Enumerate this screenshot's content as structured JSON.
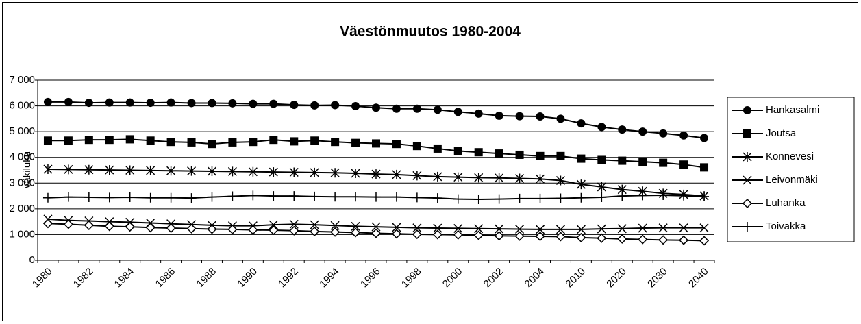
{
  "chart_data": {
    "type": "line",
    "title": "Väestönmuutos 1980-2004",
    "y_label": "väkiluku",
    "categories": [
      "1980",
      null,
      "1982",
      null,
      "1984",
      null,
      "1986",
      null,
      "1988",
      null,
      "1990",
      null,
      "1992",
      null,
      "1994",
      null,
      "1996",
      null,
      "1998",
      null,
      "2000",
      null,
      "2002",
      null,
      "2004",
      null,
      "2010",
      null,
      "2020",
      null,
      "2030",
      null,
      "2040"
    ],
    "ylim": [
      0,
      7000
    ],
    "yticks": [
      0,
      {
        "value": 1000,
        "label": "1 000"
      },
      {
        "value": 2000,
        "label": "2 000"
      },
      {
        "value": 3000,
        "label": "3 000"
      },
      {
        "value": 4000,
        "label": "4 000"
      },
      {
        "value": 5000,
        "label": "5 000"
      },
      {
        "value": 6000,
        "label": "6 000"
      },
      {
        "value": 7000,
        "label": "7 000"
      }
    ],
    "grid": true,
    "legend": "right",
    "series": [
      {
        "name": "Hankasalmi",
        "color": "#000000",
        "marker": "circle",
        "values": [
          6150,
          6150,
          6120,
          6130,
          6130,
          6120,
          6130,
          6110,
          6110,
          6100,
          6080,
          6080,
          6040,
          6020,
          6030,
          5990,
          5930,
          5890,
          5890,
          5850,
          5770,
          5700,
          5620,
          5600,
          5590,
          5500,
          5320,
          5180,
          5080,
          5000,
          4930,
          4850,
          4750
        ]
      },
      {
        "name": "Joutsa",
        "color": "#000000",
        "marker": "square",
        "values": [
          4650,
          4650,
          4680,
          4680,
          4700,
          4650,
          4600,
          4580,
          4520,
          4580,
          4600,
          4680,
          4620,
          4650,
          4600,
          4560,
          4540,
          4520,
          4440,
          4340,
          4250,
          4200,
          4150,
          4100,
          4050,
          4050,
          3950,
          3900,
          3870,
          3830,
          3790,
          3720,
          3610
        ]
      },
      {
        "name": "Konnevesi",
        "color": "#000000",
        "marker": "asterisk",
        "values": [
          3540,
          3530,
          3520,
          3510,
          3500,
          3490,
          3480,
          3470,
          3460,
          3450,
          3440,
          3430,
          3420,
          3410,
          3400,
          3380,
          3350,
          3330,
          3290,
          3250,
          3230,
          3210,
          3200,
          3180,
          3160,
          3100,
          2950,
          2850,
          2750,
          2680,
          2600,
          2560,
          2500
        ]
      },
      {
        "name": "Leivonmäki",
        "color": "#000000",
        "marker": "x",
        "values": [
          1600,
          1550,
          1530,
          1500,
          1480,
          1450,
          1420,
          1390,
          1360,
          1340,
          1340,
          1380,
          1400,
          1380,
          1350,
          1320,
          1300,
          1280,
          1260,
          1250,
          1240,
          1230,
          1220,
          1210,
          1200,
          1200,
          1200,
          1220,
          1230,
          1250,
          1260,
          1260,
          1260
        ]
      },
      {
        "name": "Luhanka",
        "color": "#000000",
        "marker": "diamond",
        "values": [
          1430,
          1400,
          1360,
          1320,
          1300,
          1270,
          1250,
          1230,
          1210,
          1200,
          1180,
          1170,
          1150,
          1120,
          1100,
          1080,
          1050,
          1030,
          1010,
          1000,
          990,
          970,
          950,
          940,
          930,
          920,
          880,
          860,
          830,
          810,
          790,
          780,
          760
        ]
      },
      {
        "name": "Toivakka",
        "color": "#000000",
        "marker": "plus",
        "values": [
          2430,
          2460,
          2450,
          2440,
          2450,
          2430,
          2430,
          2420,
          2460,
          2490,
          2520,
          2500,
          2500,
          2480,
          2470,
          2470,
          2460,
          2460,
          2440,
          2420,
          2380,
          2370,
          2380,
          2400,
          2400,
          2410,
          2430,
          2450,
          2500,
          2520,
          2530,
          2510,
          2480
        ]
      }
    ]
  }
}
